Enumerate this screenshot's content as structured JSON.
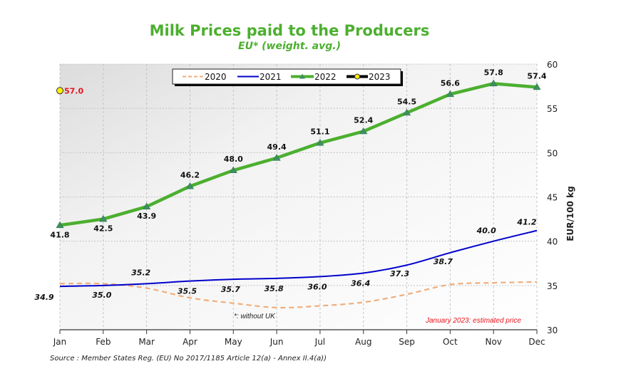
{
  "chart_data": {
    "type": "line",
    "title": "Milk Prices paid to the Producers",
    "subtitle": "EU* (weight. avg.)",
    "xlabel": "",
    "ylabel": "EUR/100 kg",
    "ylim": [
      30,
      60
    ],
    "yticks": [
      30,
      35,
      40,
      45,
      50,
      55,
      60
    ],
    "y_axis_side": "right",
    "grid": true,
    "legend_position": "top-center",
    "categories": [
      "Jan",
      "Feb",
      "Mar",
      "Apr",
      "May",
      "Jun",
      "Jul",
      "Aug",
      "Sep",
      "Oct",
      "Nov",
      "Dec"
    ],
    "series": [
      {
        "name": "2020",
        "color": "#f0ad7a",
        "style": "dashed",
        "values": [
          35.2,
          35.2,
          34.7,
          33.6,
          33.0,
          32.5,
          32.7,
          33.1,
          34.0,
          35.1,
          35.3,
          35.4
        ],
        "labeled": false
      },
      {
        "name": "2021",
        "color": "#0000cc",
        "style": "solid",
        "values": [
          34.9,
          35.0,
          35.2,
          35.5,
          35.7,
          35.8,
          36.0,
          36.4,
          37.3,
          38.7,
          40.0,
          41.2
        ],
        "labeled": true
      },
      {
        "name": "2022",
        "color": "#4caf2f",
        "style": "solid-thick",
        "marker": "triangle",
        "values": [
          41.8,
          42.5,
          43.9,
          46.2,
          48.0,
          49.4,
          51.1,
          52.4,
          54.5,
          56.6,
          57.8,
          57.4
        ],
        "labeled": true
      },
      {
        "name": "2023",
        "color": "#000000",
        "style": "solid-thick",
        "marker": "circle-yellow",
        "values": [
          57.0,
          null,
          null,
          null,
          null,
          null,
          null,
          null,
          null,
          null,
          null,
          null
        ],
        "labeled": true,
        "label_color": "#e8141c"
      }
    ],
    "annotations": [
      {
        "text": "*: without UK",
        "color": "#222222"
      },
      {
        "text": "January 2023: estimated price",
        "color": "#e8141c"
      }
    ],
    "source": "Source : Member States Reg. (EU) No 2017/1185 Article 12(a) - Annex II.4(a))"
  }
}
